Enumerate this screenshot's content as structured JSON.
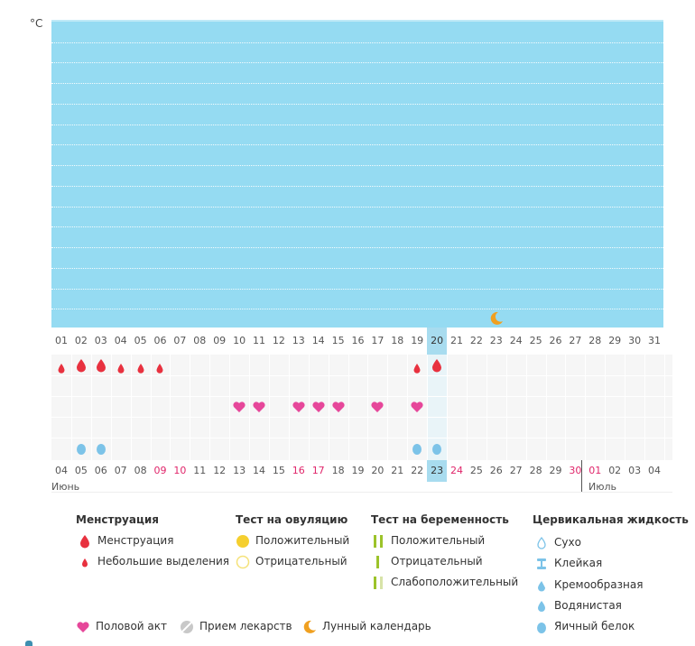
{
  "chart": {
    "unit_label": "°C",
    "gridlines": 14,
    "background": "#95dbf2"
  },
  "cycle_days": [
    "01",
    "02",
    "03",
    "04",
    "05",
    "06",
    "07",
    "08",
    "09",
    "10",
    "11",
    "12",
    "13",
    "14",
    "15",
    "16",
    "17",
    "18",
    "19",
    "20",
    "21",
    "22",
    "23",
    "24",
    "25",
    "26",
    "27",
    "28",
    "29",
    "30",
    "31"
  ],
  "current_day": "20",
  "moon_day": "23",
  "marks": {
    "menstruation_heavy": [
      "02",
      "03",
      "20"
    ],
    "menstruation_light": [
      "01",
      "04",
      "05",
      "06",
      "19"
    ],
    "intercourse": [
      "10",
      "11",
      "13",
      "14",
      "15",
      "17",
      "19"
    ],
    "cervical_egg_white": [
      "02",
      "03",
      "19",
      "20"
    ]
  },
  "dates": {
    "labels": [
      "04",
      "05",
      "06",
      "07",
      "08",
      "09",
      "10",
      "11",
      "12",
      "13",
      "14",
      "15",
      "16",
      "17",
      "18",
      "19",
      "20",
      "21",
      "22",
      "23",
      "24",
      "25",
      "26",
      "27",
      "28",
      "29",
      "30",
      "01",
      "02",
      "03",
      "04"
    ],
    "weekend_indices": [
      5,
      6,
      12,
      13,
      19,
      20,
      26,
      27
    ],
    "current_index": 19,
    "month_start": "Июнь",
    "month_next": "Июль"
  },
  "legend": {
    "menstruation": {
      "title": "Менструация",
      "items": [
        "Менструация",
        "Небольшие выделения"
      ]
    },
    "ovulation_test": {
      "title": "Тест на овуляцию",
      "items": [
        "Положительный",
        "Отрицательный"
      ]
    },
    "pregnancy_test": {
      "title": "Тест на беременность",
      "items": [
        "Положительный",
        "Отрицательный",
        "Слабоположительный"
      ]
    },
    "cervical": {
      "title": "Цервикальная жидкость",
      "items": [
        "Сухо",
        "Клейкая",
        "Кремообразная",
        "Водянистая",
        "Яичный белок"
      ]
    },
    "extra": [
      "Половой акт",
      "Прием лекарств",
      "Лунный календарь"
    ]
  },
  "colors": {
    "blood": "#e8313f",
    "heart": "#e6479a",
    "cervical": "#7cc3e8",
    "moon": "#f0a020",
    "test_positive": "#9cc32a",
    "test_weak": "#d7e3a8",
    "ovulation_positive": "#f5cf2f",
    "ovulation_negative": "#f5e27a",
    "weekend": "#e0256a"
  }
}
